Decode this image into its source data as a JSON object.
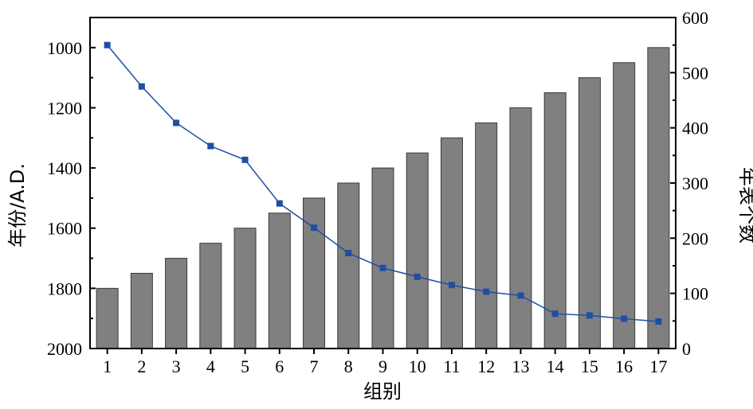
{
  "colors": {
    "bar_fill": "#808080",
    "bar_stroke": "#3a3a3a",
    "line": "#1f4ea3",
    "marker": "#1f4ea3",
    "axis": "#000000",
    "background": "#ffffff"
  },
  "chart_data": {
    "type": "bar",
    "xlabel": "组别",
    "ylabel_left": "年份/A.D.",
    "ylabel_right": "年表个数",
    "categories": [
      "1",
      "2",
      "3",
      "4",
      "5",
      "6",
      "7",
      "8",
      "9",
      "10",
      "11",
      "12",
      "13",
      "14",
      "15",
      "16",
      "17"
    ],
    "left_axis": {
      "range": [
        2000,
        900
      ],
      "inverted": true,
      "ticks": [
        1000,
        1200,
        1400,
        1600,
        1800,
        2000
      ],
      "minor_ticks": [
        1100,
        1300,
        1500,
        1700,
        1900
      ]
    },
    "right_axis": {
      "range": [
        0,
        600
      ],
      "ticks": [
        0,
        100,
        200,
        300,
        400,
        500,
        600
      ],
      "minor_ticks": [
        50,
        150,
        250,
        350,
        450,
        550
      ]
    },
    "series": [
      {
        "type": "bar",
        "axis": "left",
        "values": [
          1800,
          1750,
          1700,
          1650,
          1600,
          1550,
          1500,
          1450,
          1400,
          1350,
          1300,
          1250,
          1200,
          1150,
          1100,
          1050,
          1000
        ]
      },
      {
        "type": "line",
        "axis": "right",
        "marker": "square",
        "values": [
          550,
          475,
          409,
          367,
          342,
          263,
          219,
          173,
          146,
          130,
          115,
          103,
          96,
          63,
          60,
          54,
          49
        ]
      }
    ]
  }
}
